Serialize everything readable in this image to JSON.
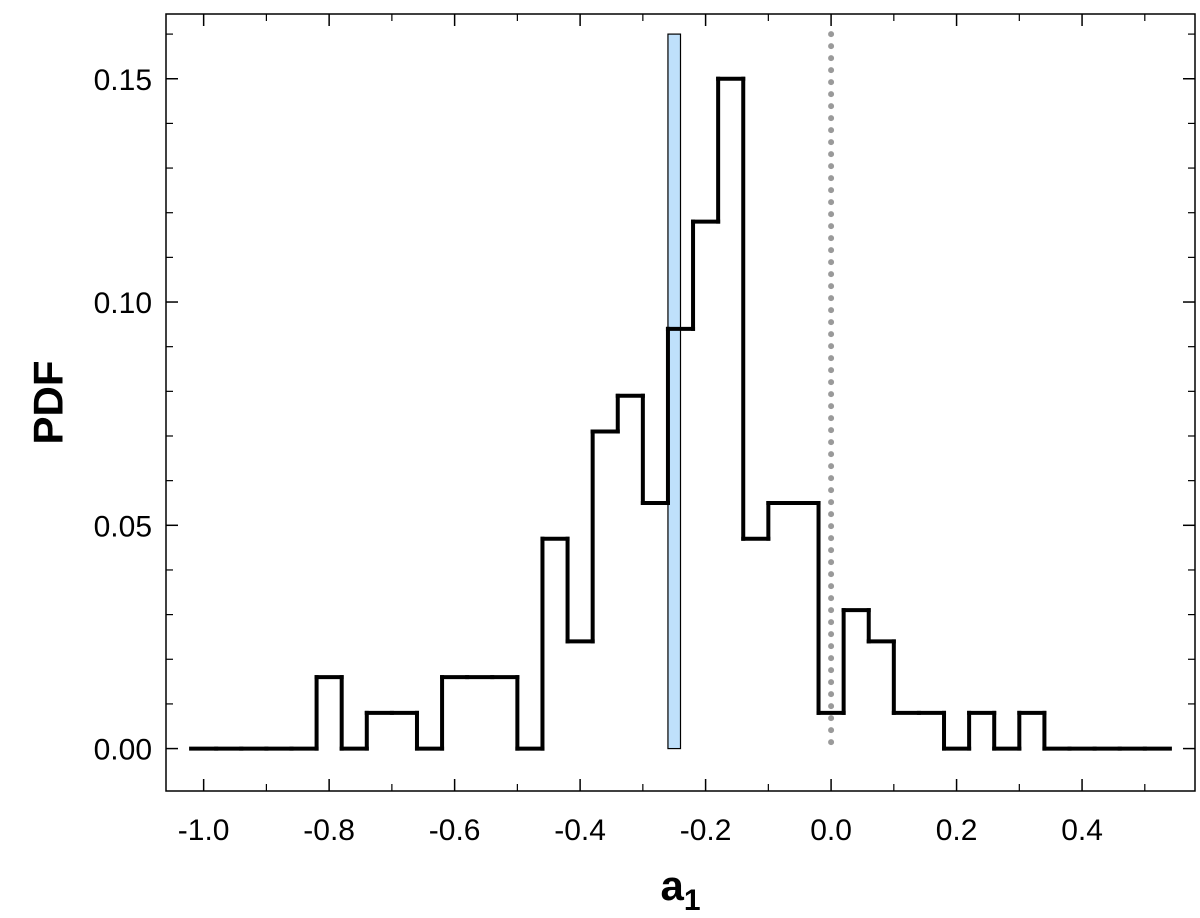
{
  "chart_data": {
    "type": "line",
    "xlabel_main": "a",
    "xlabel_sub": "1",
    "ylabel": "PDF",
    "xlim": [
      -1.06,
      0.58
    ],
    "ylim": [
      -0.0095,
      0.1645
    ],
    "x_ticks": [
      -1.0,
      -0.8,
      -0.6,
      -0.4,
      -0.2,
      0.0,
      0.2,
      0.4
    ],
    "x_tick_labels": [
      "-1.0",
      "-0.8",
      "-0.6",
      "-0.4",
      "-0.2",
      "0.0",
      "0.2",
      "0.4"
    ],
    "x_minor_ticks": [
      -0.9,
      -0.7,
      -0.5,
      -0.3,
      -0.1,
      0.1,
      0.3,
      0.5
    ],
    "y_ticks": [
      0.0,
      0.05,
      0.1,
      0.15
    ],
    "y_tick_labels": [
      "0.00",
      "0.05",
      "0.10",
      "0.15"
    ],
    "y_minor_ticks": [
      0.01,
      0.02,
      0.03,
      0.04,
      0.06,
      0.07,
      0.08,
      0.09,
      0.11,
      0.12,
      0.13,
      0.14,
      0.16
    ],
    "grid": false,
    "series": [
      {
        "style": "step",
        "color": "#000000",
        "bin_edges": [
          -1.02,
          -0.98,
          -0.94,
          -0.9,
          -0.86,
          -0.82,
          -0.78,
          -0.74,
          -0.7,
          -0.66,
          -0.62,
          -0.58,
          -0.54,
          -0.5,
          -0.46,
          -0.42,
          -0.38,
          -0.34,
          -0.3,
          -0.26,
          -0.22,
          -0.18,
          -0.14,
          -0.1,
          -0.06,
          -0.02,
          0.02,
          0.06,
          0.1,
          0.14,
          0.18,
          0.22,
          0.26,
          0.3,
          0.34,
          0.38,
          0.42,
          0.46,
          0.5,
          0.54
        ],
        "values": [
          0.0,
          0.0,
          0.0,
          0.0,
          0.0,
          0.016,
          0.0,
          0.008,
          0.008,
          0.0,
          0.016,
          0.016,
          0.016,
          0.0,
          0.047,
          0.024,
          0.071,
          0.079,
          0.055,
          0.094,
          0.118,
          0.15,
          0.047,
          0.055,
          0.055,
          0.008,
          0.031,
          0.024,
          0.008,
          0.008,
          0.0,
          0.008,
          0.0,
          0.008,
          0.0,
          0.0,
          0.0,
          0.0,
          0.0
        ]
      }
    ],
    "annotations": [
      {
        "kind": "band",
        "x0": -0.26,
        "x1": -0.24,
        "y0": 0.0,
        "y1": 0.16,
        "fill": "#bfe0fb",
        "stroke": "#000000"
      },
      {
        "kind": "vline",
        "x": 0.0,
        "y0": 0.0,
        "y1": 0.16,
        "style": "dotted",
        "color": "#9a9a9a"
      }
    ]
  }
}
